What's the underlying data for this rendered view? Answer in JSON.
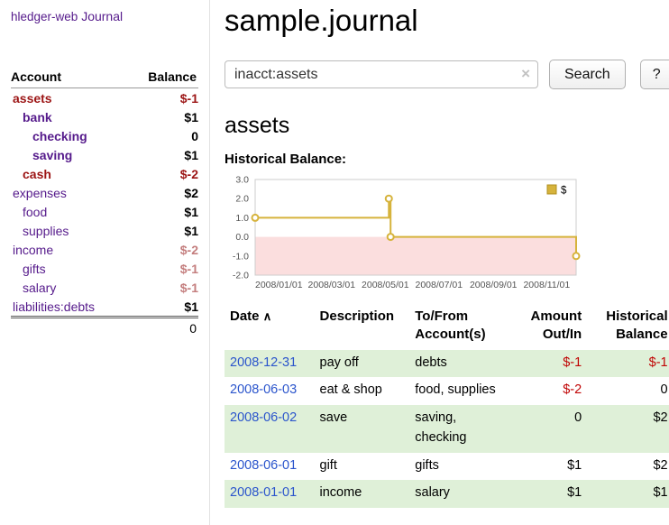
{
  "colors": {
    "link_purple": "#551a8b",
    "date_link_blue": "#2b55cc",
    "negative_red": "#c00404",
    "sidebar_negative_red": "#9c1515",
    "faded_negative_red": "#c47e7e",
    "row_green": "#dff0d8",
    "chart_line_gold": "#d6b33c",
    "chart_negative_bg": "#fbdede"
  },
  "sidebar": {
    "app_title": "hledger-web",
    "journal_link": "Journal",
    "header": {
      "account": "Account",
      "balance": "Balance"
    },
    "accounts": [
      {
        "name": "assets",
        "balance": "$-1"
      },
      {
        "name": "bank",
        "balance": "$1"
      },
      {
        "name": "checking",
        "balance": "0"
      },
      {
        "name": "saving",
        "balance": "$1"
      },
      {
        "name": "cash",
        "balance": "$-2"
      },
      {
        "name": "expenses",
        "balance": "$2"
      },
      {
        "name": "food",
        "balance": "$1"
      },
      {
        "name": "supplies",
        "balance": "$1"
      },
      {
        "name": "income",
        "balance": "$-2"
      },
      {
        "name": "gifts",
        "balance": "$-1"
      },
      {
        "name": "salary",
        "balance": "$-1"
      },
      {
        "name": "liabilities:debts",
        "balance": "$1"
      }
    ],
    "total": "0"
  },
  "main": {
    "title": "sample.journal",
    "search": {
      "value": "inacct:assets",
      "clear_icon": "×",
      "button_label": "Search",
      "help_label": "?"
    },
    "account_heading": "assets",
    "chart_label": "Historical Balance:"
  },
  "register": {
    "headers": {
      "date": "Date",
      "sort_icon": "∧",
      "description": "Description",
      "accounts": "To/From\nAccount(s)",
      "amount": "Amount\nOut/In",
      "balance": "Historical\nBalance"
    },
    "rows": [
      {
        "date": "2008-12-31",
        "description": "pay off",
        "accounts": "debts",
        "amount": "$-1",
        "balance": "$-1"
      },
      {
        "date": "2008-06-03",
        "description": "eat & shop",
        "accounts": "food, supplies",
        "amount": "$-2",
        "balance": "0"
      },
      {
        "date": "2008-06-02",
        "description": "save",
        "accounts": "saving, checking",
        "amount": "0",
        "balance": "$2"
      },
      {
        "date": "2008-06-01",
        "description": "gift",
        "accounts": "gifts",
        "amount": "$1",
        "balance": "$2"
      },
      {
        "date": "2008-01-01",
        "description": "income",
        "accounts": "salary",
        "amount": "$1",
        "balance": "$1"
      }
    ]
  },
  "chart_data": {
    "type": "line",
    "step": true,
    "title": "Historical Balance",
    "xlim": [
      0,
      365
    ],
    "ylim": [
      -2,
      3
    ],
    "y_ticks": [
      3.0,
      2.0,
      1.0,
      0.0,
      -1.0,
      -2.0
    ],
    "x_ticks": [
      {
        "x": 0,
        "label": "2008/01/01"
      },
      {
        "x": 60,
        "label": "2008/03/01"
      },
      {
        "x": 121,
        "label": "2008/05/01"
      },
      {
        "x": 182,
        "label": "2008/07/01"
      },
      {
        "x": 244,
        "label": "2008/09/01"
      },
      {
        "x": 305,
        "label": "2008/11/01"
      }
    ],
    "series": [
      {
        "name": "$",
        "color": "#d6b33c",
        "points": [
          {
            "date": "2008-01-01",
            "x": 0,
            "y": 1
          },
          {
            "date": "2008-06-01",
            "x": 152,
            "y": 2
          },
          {
            "date": "2008-06-03",
            "x": 154,
            "y": 0
          },
          {
            "date": "2008-12-31",
            "x": 365,
            "y": -1
          }
        ]
      }
    ],
    "negative_region_color": "#fbdede",
    "legend": {
      "label": "$",
      "swatch_color": "#d6b33c",
      "position": "top-right"
    },
    "grid": false
  }
}
